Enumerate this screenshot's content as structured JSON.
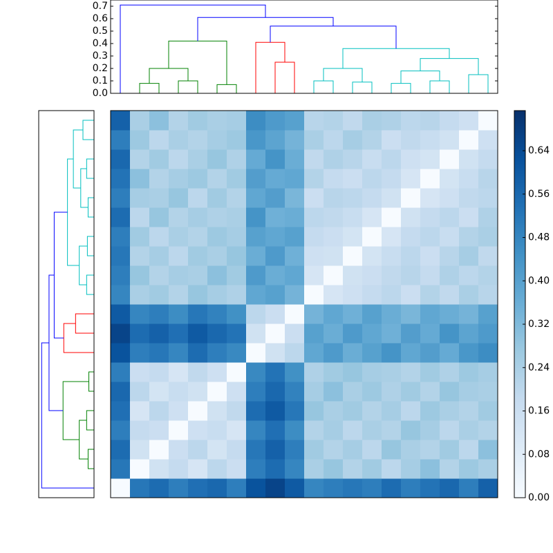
{
  "chart_data": {
    "type": "clustered-heatmap",
    "matrix": [
      [
        0,
        0.52,
        0.55,
        0.5,
        0.54,
        0.56,
        0.5,
        0.62,
        0.66,
        0.6,
        0.48,
        0.5,
        0.52,
        0.5,
        0.55,
        0.5,
        0.53,
        0.56,
        0.5,
        0.58
      ],
      [
        0.52,
        0,
        0.14,
        0.18,
        0.12,
        0.2,
        0.16,
        0.5,
        0.55,
        0.48,
        0.24,
        0.28,
        0.22,
        0.26,
        0.2,
        0.25,
        0.3,
        0.22,
        0.27,
        0.24
      ],
      [
        0.55,
        0.14,
        0,
        0.16,
        0.2,
        0.13,
        0.18,
        0.52,
        0.58,
        0.5,
        0.26,
        0.22,
        0.25,
        0.2,
        0.28,
        0.24,
        0.22,
        0.26,
        0.2,
        0.3
      ],
      [
        0.5,
        0.18,
        0.16,
        0,
        0.15,
        0.17,
        0.12,
        0.48,
        0.54,
        0.46,
        0.22,
        0.25,
        0.2,
        0.24,
        0.22,
        0.28,
        0.25,
        0.2,
        0.24,
        0.22
      ],
      [
        0.54,
        0.12,
        0.2,
        0.15,
        0,
        0.14,
        0.19,
        0.55,
        0.6,
        0.52,
        0.28,
        0.24,
        0.26,
        0.22,
        0.25,
        0.2,
        0.27,
        0.24,
        0.22,
        0.26
      ],
      [
        0.56,
        0.2,
        0.13,
        0.17,
        0.14,
        0,
        0.15,
        0.5,
        0.56,
        0.49,
        0.25,
        0.3,
        0.24,
        0.27,
        0.23,
        0.26,
        0.22,
        0.28,
        0.25,
        0.24
      ],
      [
        0.5,
        0.16,
        0.18,
        0.12,
        0.19,
        0.15,
        0,
        0.47,
        0.53,
        0.45,
        0.23,
        0.26,
        0.28,
        0.25,
        0.24,
        0.22,
        0.26,
        0.23,
        0.27,
        0.25
      ],
      [
        0.62,
        0.5,
        0.52,
        0.48,
        0.55,
        0.5,
        0.47,
        0,
        0.14,
        0.2,
        0.38,
        0.42,
        0.36,
        0.4,
        0.44,
        0.38,
        0.41,
        0.37,
        0.43,
        0.46
      ],
      [
        0.66,
        0.55,
        0.58,
        0.54,
        0.6,
        0.56,
        0.53,
        0.14,
        0,
        0.16,
        0.4,
        0.36,
        0.42,
        0.38,
        0.35,
        0.41,
        0.37,
        0.44,
        0.39,
        0.42
      ],
      [
        0.6,
        0.48,
        0.5,
        0.46,
        0.52,
        0.49,
        0.45,
        0.2,
        0.16,
        0,
        0.34,
        0.38,
        0.35,
        0.4,
        0.36,
        0.33,
        0.38,
        0.36,
        0.34,
        0.4
      ],
      [
        0.48,
        0.24,
        0.26,
        0.22,
        0.28,
        0.25,
        0.23,
        0.38,
        0.4,
        0.34,
        0,
        0.12,
        0.15,
        0.18,
        0.2,
        0.16,
        0.22,
        0.19,
        0.24,
        0.21
      ],
      [
        0.5,
        0.28,
        0.22,
        0.25,
        0.24,
        0.3,
        0.26,
        0.42,
        0.36,
        0.38,
        0.12,
        0,
        0.14,
        0.16,
        0.19,
        0.21,
        0.18,
        0.23,
        0.2,
        0.22
      ],
      [
        0.52,
        0.22,
        0.25,
        0.2,
        0.26,
        0.24,
        0.28,
        0.36,
        0.42,
        0.35,
        0.15,
        0.14,
        0,
        0.13,
        0.17,
        0.2,
        0.16,
        0.21,
        0.25,
        0.19
      ],
      [
        0.5,
        0.26,
        0.2,
        0.24,
        0.22,
        0.27,
        0.25,
        0.4,
        0.38,
        0.4,
        0.18,
        0.16,
        0.13,
        0,
        0.12,
        0.18,
        0.2,
        0.17,
        0.22,
        0.24
      ],
      [
        0.55,
        0.2,
        0.28,
        0.22,
        0.25,
        0.23,
        0.24,
        0.44,
        0.35,
        0.36,
        0.2,
        0.19,
        0.17,
        0.12,
        0,
        0.14,
        0.18,
        0.2,
        0.16,
        0.23
      ],
      [
        0.5,
        0.25,
        0.24,
        0.28,
        0.2,
        0.26,
        0.22,
        0.38,
        0.41,
        0.33,
        0.16,
        0.21,
        0.2,
        0.18,
        0.14,
        0,
        0.12,
        0.15,
        0.19,
        0.2
      ],
      [
        0.53,
        0.3,
        0.22,
        0.25,
        0.27,
        0.22,
        0.26,
        0.41,
        0.37,
        0.38,
        0.22,
        0.18,
        0.16,
        0.2,
        0.18,
        0.12,
        0,
        0.13,
        0.17,
        0.21
      ],
      [
        0.56,
        0.22,
        0.26,
        0.2,
        0.24,
        0.28,
        0.23,
        0.37,
        0.44,
        0.36,
        0.19,
        0.23,
        0.21,
        0.17,
        0.2,
        0.15,
        0.13,
        0,
        0.14,
        0.18
      ],
      [
        0.5,
        0.27,
        0.2,
        0.24,
        0.22,
        0.25,
        0.27,
        0.43,
        0.39,
        0.34,
        0.24,
        0.2,
        0.25,
        0.22,
        0.16,
        0.19,
        0.17,
        0.14,
        0,
        0.15
      ],
      [
        0.58,
        0.24,
        0.3,
        0.22,
        0.26,
        0.24,
        0.25,
        0.46,
        0.42,
        0.4,
        0.21,
        0.22,
        0.19,
        0.24,
        0.23,
        0.2,
        0.21,
        0.18,
        0.15,
        0
      ]
    ],
    "colormap": [
      "#f7fbff",
      "#deebf7",
      "#c6dbef",
      "#9ecae1",
      "#6baed6",
      "#4292c6",
      "#2171b5",
      "#08519c",
      "#08306b"
    ],
    "clim": [
      0,
      0.714
    ],
    "cticks": [
      {
        "value": 0,
        "label": "0.00"
      },
      {
        "value": 0.08,
        "label": "0.08"
      },
      {
        "value": 0.16,
        "label": "0.16"
      },
      {
        "value": 0.24,
        "label": "0.24"
      },
      {
        "value": 0.32,
        "label": "0.32"
      },
      {
        "value": 0.4,
        "label": "0.40"
      },
      {
        "value": 0.48,
        "label": "0.48"
      },
      {
        "value": 0.56,
        "label": "0.56"
      },
      {
        "value": 0.64,
        "label": "0.64"
      }
    ],
    "ylim": [
      0,
      0.75
    ],
    "yticks": [
      {
        "value": 0,
        "label": "0.0"
      },
      {
        "value": 0.1,
        "label": "0.1"
      },
      {
        "value": 0.2,
        "label": "0.2"
      },
      {
        "value": 0.3,
        "label": "0.3"
      },
      {
        "value": 0.4,
        "label": "0.4"
      },
      {
        "value": 0.5,
        "label": "0.5"
      },
      {
        "value": 0.6,
        "label": "0.6"
      },
      {
        "value": 0.7,
        "label": "0.7"
      }
    ],
    "links": [
      {
        "left": 1,
        "right": 2,
        "height": 0.08,
        "color": "#008000"
      },
      {
        "left": 3,
        "right": 4,
        "height": 0.1,
        "color": "#008000"
      },
      {
        "left": 5,
        "right": 6,
        "height": 0.07,
        "color": "#008000"
      },
      {
        "left": 20,
        "right": 21,
        "height": 0.2,
        "color": "#008000"
      },
      {
        "left": 23,
        "right": 22,
        "height": 0.42,
        "color": "#008000"
      },
      {
        "left": 8,
        "right": 9,
        "height": 0.25,
        "color": "#ff0000"
      },
      {
        "left": 7,
        "right": 25,
        "height": 0.41,
        "color": "#ff0000"
      },
      {
        "left": 10,
        "right": 11,
        "height": 0.1,
        "color": "#00bfbf"
      },
      {
        "left": 12,
        "right": 13,
        "height": 0.09,
        "color": "#00bfbf"
      },
      {
        "left": 27,
        "right": 28,
        "height": 0.2,
        "color": "#00bfbf"
      },
      {
        "left": 14,
        "right": 15,
        "height": 0.08,
        "color": "#00bfbf"
      },
      {
        "left": 16,
        "right": 17,
        "height": 0.1,
        "color": "#00bfbf"
      },
      {
        "left": 30,
        "right": 31,
        "height": 0.18,
        "color": "#00bfbf"
      },
      {
        "left": 18,
        "right": 19,
        "height": 0.15,
        "color": "#00bfbf"
      },
      {
        "left": 32,
        "right": 33,
        "height": 0.28,
        "color": "#00bfbf"
      },
      {
        "left": 29,
        "right": 34,
        "height": 0.36,
        "color": "#00bfbf"
      },
      {
        "left": 26,
        "right": 35,
        "height": 0.54,
        "color": "#0000ff"
      },
      {
        "left": 24,
        "right": 36,
        "height": 0.61,
        "color": "#0000ff"
      },
      {
        "left": 0,
        "right": 37,
        "height": 0.71,
        "color": "#0000ff"
      }
    ]
  }
}
